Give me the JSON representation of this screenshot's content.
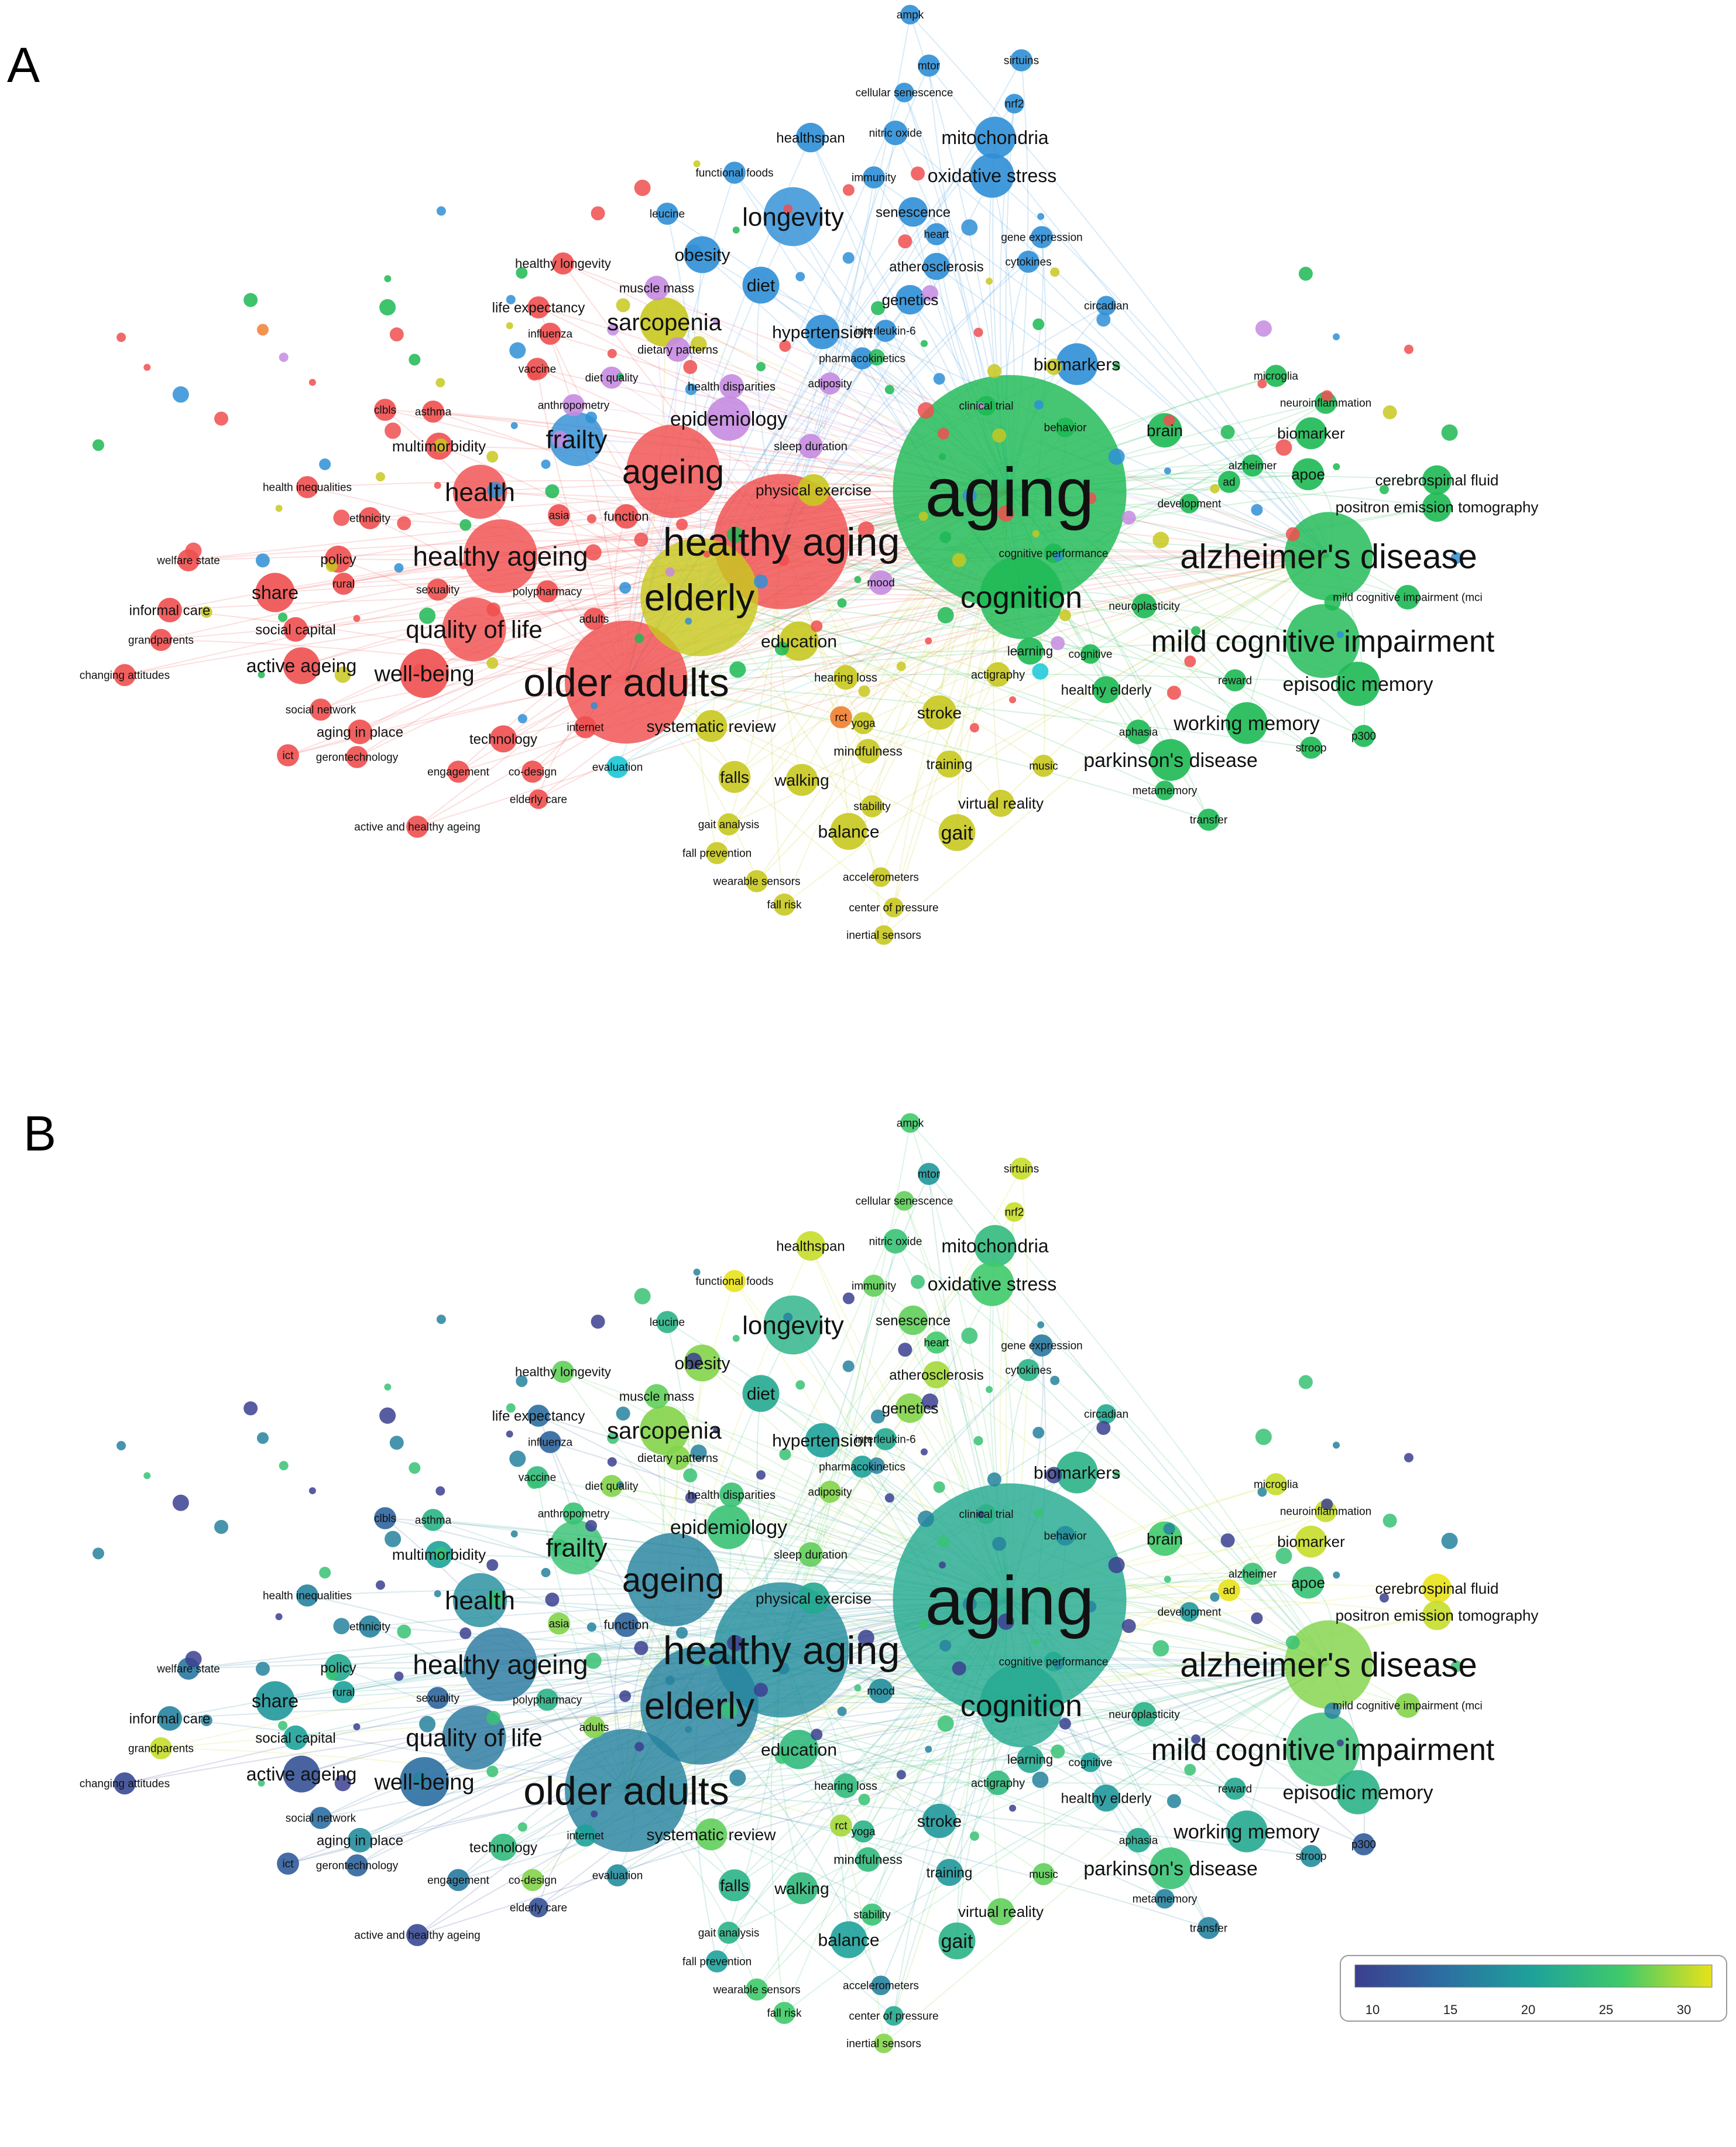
{
  "panel_labels": [
    "A",
    "B"
  ],
  "colorbar": {
    "ticks": [
      "10",
      "15",
      "20",
      "25",
      "30"
    ],
    "colors": [
      "#3b3f8f",
      "#2c6fa1",
      "#1ea29a",
      "#3fca6a",
      "#e8e21a"
    ]
  },
  "clusters": {
    "red": "#f04f4f",
    "green": "#1db954",
    "blue": "#2f8fd6",
    "yellow": "#c8c820",
    "purple": "#c58be0",
    "orange": "#f08030",
    "cyan": "#18c8d8"
  },
  "nodes": [
    {
      "label": "aging",
      "cluster": "green",
      "weight": 95,
      "year": 21
    },
    {
      "label": "healthy aging",
      "cluster": "red",
      "weight": 55,
      "year": 18
    },
    {
      "label": "older adults",
      "cluster": "red",
      "weight": 50,
      "year": 17
    },
    {
      "label": "elderly",
      "cluster": "yellow",
      "weight": 48,
      "year": 17
    },
    {
      "label": "ageing",
      "cluster": "red",
      "weight": 38,
      "year": 17
    },
    {
      "label": "alzheimer's disease",
      "cluster": "green",
      "weight": 36,
      "year": 27
    },
    {
      "label": "cognition",
      "cluster": "green",
      "weight": 34,
      "year": 21
    },
    {
      "label": "mild cognitive impairment",
      "cluster": "green",
      "weight": 30,
      "year": 24
    },
    {
      "label": "healthy ageing",
      "cluster": "red",
      "weight": 30,
      "year": 16
    },
    {
      "label": "quality of life",
      "cluster": "red",
      "weight": 26,
      "year": 16
    },
    {
      "label": "longevity",
      "cluster": "blue",
      "weight": 24,
      "year": 22
    },
    {
      "label": "health",
      "cluster": "red",
      "weight": 22,
      "year": 18
    },
    {
      "label": "frailty",
      "cluster": "blue",
      "weight": 22,
      "year": 24
    },
    {
      "label": "sarcopenia",
      "cluster": "yellow",
      "weight": 20,
      "year": 27
    },
    {
      "label": "well-being",
      "cluster": "red",
      "weight": 20,
      "year": 15
    },
    {
      "label": "epidemiology",
      "cluster": "purple",
      "weight": 18,
      "year": 24
    },
    {
      "label": "mitochondria",
      "cluster": "blue",
      "weight": 17,
      "year": 23
    },
    {
      "label": "oxidative stress",
      "cluster": "blue",
      "weight": 18,
      "year": 25
    },
    {
      "label": "biomarkers",
      "cluster": "blue",
      "weight": 17,
      "year": 22
    },
    {
      "label": "episodic memory",
      "cluster": "green",
      "weight": 18,
      "year": 22
    },
    {
      "label": "working memory",
      "cluster": "green",
      "weight": 17,
      "year": 21
    },
    {
      "label": "parkinson's disease",
      "cluster": "green",
      "weight": 17,
      "year": 24
    },
    {
      "label": "education",
      "cluster": "yellow",
      "weight": 16,
      "year": 23
    },
    {
      "label": "share",
      "cluster": "red",
      "weight": 16,
      "year": 19
    },
    {
      "label": "active ageing",
      "cluster": "red",
      "weight": 15,
      "year": 12
    },
    {
      "label": "obesity",
      "cluster": "blue",
      "weight": 15,
      "year": 27
    },
    {
      "label": "diet",
      "cluster": "blue",
      "weight": 15,
      "year": 21
    },
    {
      "label": "hypertension",
      "cluster": "blue",
      "weight": 14,
      "year": 20
    },
    {
      "label": "gait",
      "cluster": "yellow",
      "weight": 15,
      "year": 22
    },
    {
      "label": "balance",
      "cluster": "yellow",
      "weight": 15,
      "year": 20
    },
    {
      "label": "stroke",
      "cluster": "yellow",
      "weight": 14,
      "year": 19
    },
    {
      "label": "falls",
      "cluster": "yellow",
      "weight": 13,
      "year": 22
    },
    {
      "label": "walking",
      "cluster": "yellow",
      "weight": 13,
      "year": 23
    },
    {
      "label": "brain",
      "cluster": "green",
      "weight": 14,
      "year": 25
    },
    {
      "label": "biomarker",
      "cluster": "green",
      "weight": 13,
      "year": 29
    },
    {
      "label": "apoe",
      "cluster": "green",
      "weight": 13,
      "year": 24
    },
    {
      "label": "cerebrospinal fluid",
      "cluster": "green",
      "weight": 12,
      "year": 30
    },
    {
      "label": "positron emission tomography",
      "cluster": "green",
      "weight": 12,
      "year": 29
    },
    {
      "label": "systematic review",
      "cluster": "yellow",
      "weight": 13,
      "year": 26
    },
    {
      "label": "physical exercise",
      "cluster": "yellow",
      "weight": 13,
      "year": 21
    },
    {
      "label": "healthspan",
      "cluster": "blue",
      "weight": 12,
      "year": 29
    },
    {
      "label": "nitric oxide",
      "cluster": "blue",
      "weight": 10,
      "year": 24
    },
    {
      "label": "senescence",
      "cluster": "blue",
      "weight": 12,
      "year": 26
    },
    {
      "label": "genetics",
      "cluster": "blue",
      "weight": 12,
      "year": 27
    },
    {
      "label": "atherosclerosis",
      "cluster": "blue",
      "weight": 11,
      "year": 28
    },
    {
      "label": "multimorbidity",
      "cluster": "red",
      "weight": 11,
      "year": 20
    },
    {
      "label": "policy",
      "cluster": "red",
      "weight": 11,
      "year": 21
    },
    {
      "label": "technology",
      "cluster": "red",
      "weight": 11,
      "year": 23
    },
    {
      "label": "aging in place",
      "cluster": "red",
      "weight": 10,
      "year": 18
    },
    {
      "label": "training",
      "cluster": "yellow",
      "weight": 11,
      "year": 19
    },
    {
      "label": "virtual reality",
      "cluster": "yellow",
      "weight": 11,
      "year": 26
    },
    {
      "label": "mindfulness",
      "cluster": "yellow",
      "weight": 10,
      "year": 23
    },
    {
      "label": "learning",
      "cluster": "green",
      "weight": 11,
      "year": 21
    },
    {
      "label": "healthy elderly",
      "cluster": "green",
      "weight": 11,
      "year": 19
    },
    {
      "label": "aphasia",
      "cluster": "green",
      "weight": 10,
      "year": 21
    },
    {
      "label": "neuroplasticity",
      "cluster": "green",
      "weight": 10,
      "year": 22
    },
    {
      "label": "mild cognitive impairment (mci",
      "cluster": "green",
      "weight": 10,
      "year": 27
    },
    {
      "label": "social capital",
      "cluster": "red",
      "weight": 10,
      "year": 20
    },
    {
      "label": "informal care",
      "cluster": "red",
      "weight": 10,
      "year": 17
    },
    {
      "label": "mood",
      "cluster": "purple",
      "weight": 10,
      "year": 18
    },
    {
      "label": "muscle mass",
      "cluster": "purple",
      "weight": 10,
      "year": 26
    },
    {
      "label": "dietary patterns",
      "cluster": "purple",
      "weight": 10,
      "year": 27
    },
    {
      "label": "health disparities",
      "cluster": "purple",
      "weight": 10,
      "year": 24
    },
    {
      "label": "sleep duration",
      "cluster": "purple",
      "weight": 10,
      "year": 26
    },
    {
      "label": "function",
      "cluster": "red",
      "weight": 10,
      "year": 14
    },
    {
      "label": "hearing loss",
      "cluster": "yellow",
      "weight": 10,
      "year": 23
    },
    {
      "label": "actigraphy",
      "cluster": "yellow",
      "weight": 10,
      "year": 23
    },
    {
      "label": "rct",
      "cluster": "orange",
      "weight": 9,
      "year": 28
    },
    {
      "label": "yoga",
      "cluster": "yellow",
      "weight": 9,
      "year": 22
    },
    {
      "label": "music",
      "cluster": "yellow",
      "weight": 9,
      "year": 26
    },
    {
      "label": "stability",
      "cluster": "yellow",
      "weight": 9,
      "year": 24
    },
    {
      "label": "gait analysis",
      "cluster": "yellow",
      "weight": 9,
      "year": 22
    },
    {
      "label": "fall prevention",
      "cluster": "yellow",
      "weight": 9,
      "year": 20
    },
    {
      "label": "wearable sensors",
      "cluster": "yellow",
      "weight": 9,
      "year": 25
    },
    {
      "label": "fall risk",
      "cluster": "yellow",
      "weight": 9,
      "year": 25
    },
    {
      "label": "accelerometers",
      "cluster": "yellow",
      "weight": 8,
      "year": 17
    },
    {
      "label": "center of pressure",
      "cluster": "yellow",
      "weight": 8,
      "year": 21
    },
    {
      "label": "inertial sensors",
      "cluster": "yellow",
      "weight": 8,
      "year": 27
    },
    {
      "label": "internet",
      "cluster": "red",
      "weight": 9,
      "year": 20
    },
    {
      "label": "evaluation",
      "cluster": "cyan",
      "weight": 9,
      "year": 18
    },
    {
      "label": "engagement",
      "cluster": "red",
      "weight": 9,
      "year": 16
    },
    {
      "label": "co-design",
      "cluster": "red",
      "weight": 9,
      "year": 27
    },
    {
      "label": "elderly care",
      "cluster": "red",
      "weight": 8,
      "year": 12
    },
    {
      "label": "active and healthy ageing",
      "cluster": "red",
      "weight": 9,
      "year": 11
    },
    {
      "label": "gerontechnology",
      "cluster": "red",
      "weight": 9,
      "year": 14
    },
    {
      "label": "ict",
      "cluster": "red",
      "weight": 9,
      "year": 13
    },
    {
      "label": "social network",
      "cluster": "red",
      "weight": 9,
      "year": 15
    },
    {
      "label": "changing attitudes",
      "cluster": "red",
      "weight": 9,
      "year": 11
    },
    {
      "label": "grandparents",
      "cluster": "red",
      "weight": 9,
      "year": 29
    },
    {
      "label": "welfare state",
      "cluster": "red",
      "weight": 9,
      "year": 16
    },
    {
      "label": "health inequalities",
      "cluster": "red",
      "weight": 9,
      "year": 17
    },
    {
      "label": "ethnicity",
      "cluster": "red",
      "weight": 9,
      "year": 17
    },
    {
      "label": "rural",
      "cluster": "red",
      "weight": 9,
      "year": 20
    },
    {
      "label": "sexuality",
      "cluster": "red",
      "weight": 9,
      "year": 14
    },
    {
      "label": "polypharmacy",
      "cluster": "red",
      "weight": 9,
      "year": 22
    },
    {
      "label": "adults",
      "cluster": "red",
      "weight": 9,
      "year": 27
    },
    {
      "label": "asia",
      "cluster": "red",
      "weight": 9,
      "year": 27
    },
    {
      "label": "clbls",
      "cluster": "red",
      "weight": 9,
      "year": 14
    },
    {
      "label": "asthma",
      "cluster": "red",
      "weight": 9,
      "year": 22
    },
    {
      "label": "anthropometry",
      "cluster": "purple",
      "weight": 9,
      "year": 24
    },
    {
      "label": "vaccine",
      "cluster": "red",
      "weight": 9,
      "year": 23
    },
    {
      "label": "diet quality",
      "cluster": "purple",
      "weight": 9,
      "year": 27
    },
    {
      "label": "influenza",
      "cluster": "red",
      "weight": 9,
      "year": 14
    },
    {
      "label": "life expectancy",
      "cluster": "red",
      "weight": 9,
      "year": 15
    },
    {
      "label": "healthy longevity",
      "cluster": "red",
      "weight": 9,
      "year": 26
    },
    {
      "label": "leucine",
      "cluster": "blue",
      "weight": 9,
      "year": 22
    },
    {
      "label": "functional foods",
      "cluster": "blue",
      "weight": 9,
      "year": 30
    },
    {
      "label": "immunity",
      "cluster": "blue",
      "weight": 9,
      "year": 26
    },
    {
      "label": "heart",
      "cluster": "blue",
      "weight": 9,
      "year": 25
    },
    {
      "label": "gene expression",
      "cluster": "blue",
      "weight": 9,
      "year": 16
    },
    {
      "label": "cytokines",
      "cluster": "blue",
      "weight": 9,
      "year": 22
    },
    {
      "label": "interleukin-6",
      "cluster": "blue",
      "weight": 9,
      "year": 21
    },
    {
      "label": "pharmacokinetics",
      "cluster": "blue",
      "weight": 9,
      "year": 20
    },
    {
      "label": "adiposity",
      "cluster": "purple",
      "weight": 9,
      "year": 27
    },
    {
      "label": "circadian",
      "cluster": "blue",
      "weight": 8,
      "year": 21
    },
    {
      "label": "cellular senescence",
      "cluster": "blue",
      "weight": 8,
      "year": 26
    },
    {
      "label": "mtor",
      "cluster": "blue",
      "weight": 9,
      "year": 19
    },
    {
      "label": "sirtuins",
      "cluster": "blue",
      "weight": 9,
      "year": 29
    },
    {
      "label": "nrf2",
      "cluster": "blue",
      "weight": 8,
      "year": 29
    },
    {
      "label": "ampk",
      "cluster": "blue",
      "weight": 8,
      "year": 25
    },
    {
      "label": "clinical trial",
      "cluster": "green",
      "weight": 8,
      "year": 22
    },
    {
      "label": "behavior",
      "cluster": "green",
      "weight": 8,
      "year": 18
    },
    {
      "label": "development",
      "cluster": "green",
      "weight": 8,
      "year": 19
    },
    {
      "label": "cognitive performance",
      "cluster": "green",
      "weight": 8,
      "year": 21
    },
    {
      "label": "ad",
      "cluster": "green",
      "weight": 9,
      "year": 30
    },
    {
      "label": "alzheimer",
      "cluster": "green",
      "weight": 9,
      "year": 24
    },
    {
      "label": "microglia",
      "cluster": "green",
      "weight": 9,
      "year": 29
    },
    {
      "label": "neuroinflammation",
      "cluster": "green",
      "weight": 9,
      "year": 29
    },
    {
      "label": "cognitive",
      "cluster": "green",
      "weight": 8,
      "year": 20
    },
    {
      "label": "reward",
      "cluster": "green",
      "weight": 9,
      "year": 21
    },
    {
      "label": "stroop",
      "cluster": "green",
      "weight": 9,
      "year": 18
    },
    {
      "label": "p300",
      "cluster": "green",
      "weight": 9,
      "year": 13
    },
    {
      "label": "metamemory",
      "cluster": "green",
      "weight": 8,
      "year": 17
    },
    {
      "label": "transfer",
      "cluster": "green",
      "weight": 9,
      "year": 17
    }
  ]
}
